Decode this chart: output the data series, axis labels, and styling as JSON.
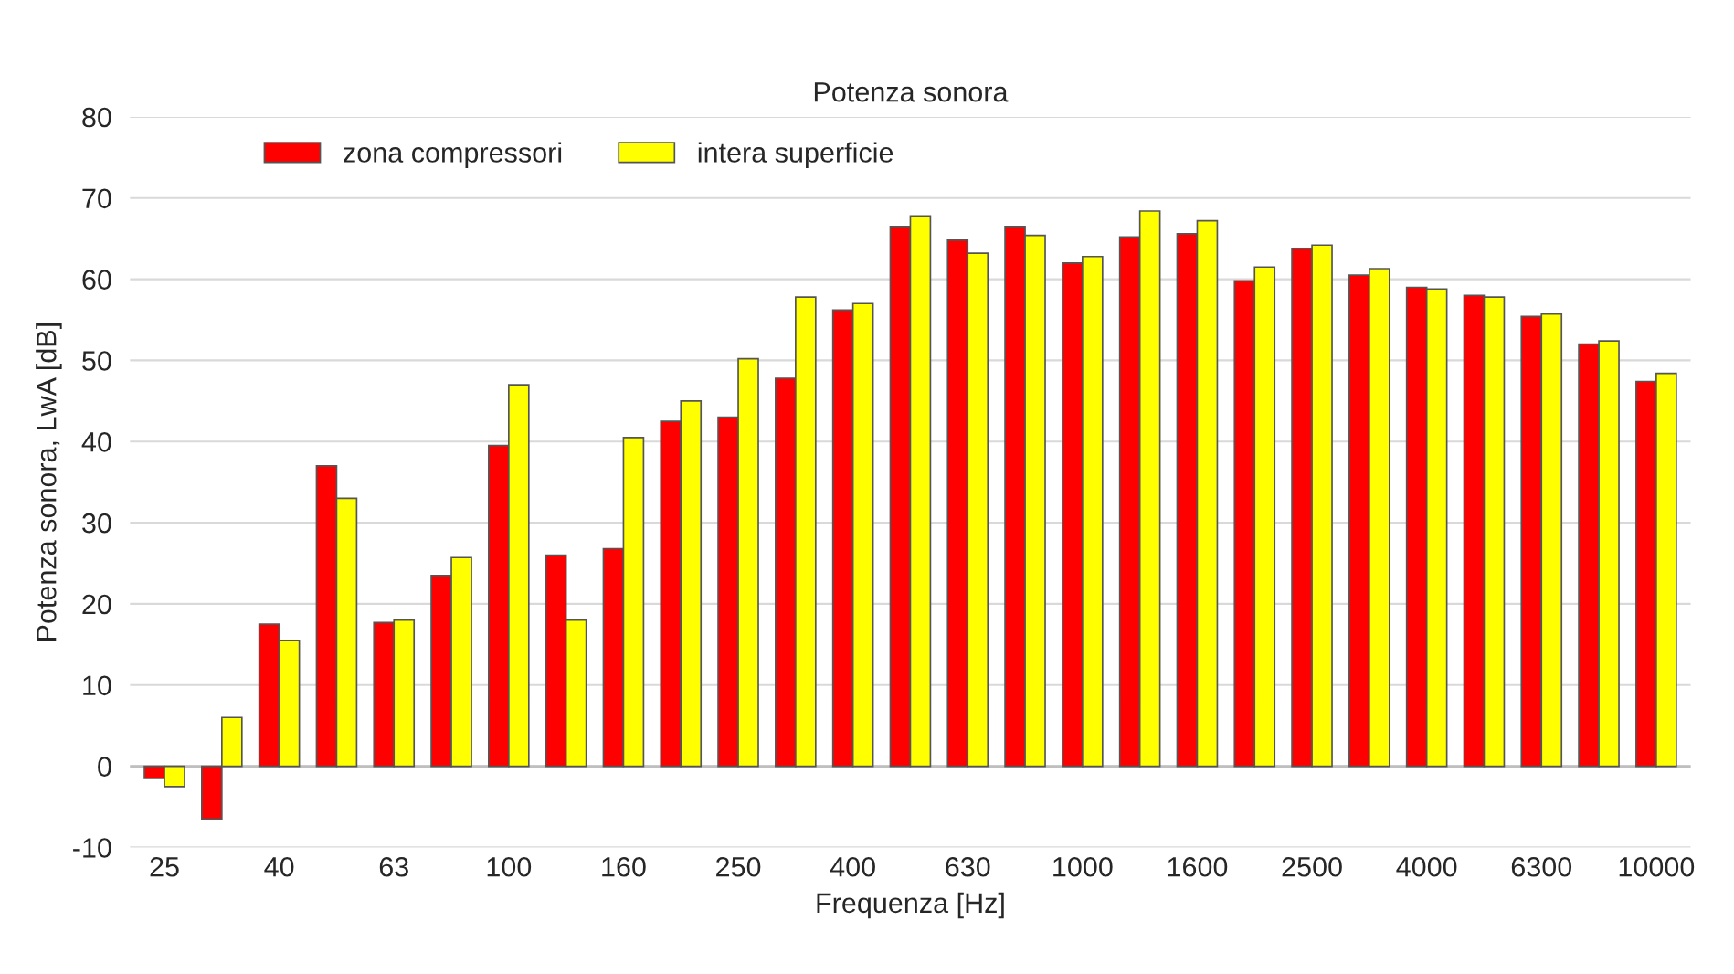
{
  "chart_data": {
    "type": "bar",
    "title": "Potenza sonora",
    "xlabel": "Frequenza [Hz]",
    "ylabel": "Potenza sonora, LwA [dB]",
    "categories": [
      "25",
      null,
      "40",
      null,
      "63",
      null,
      "100",
      null,
      "160",
      null,
      "250",
      null,
      "400",
      null,
      "630",
      null,
      "1000",
      null,
      "1600",
      null,
      "2500",
      null,
      "4000",
      null,
      "6300",
      null,
      "10000"
    ],
    "series": [
      {
        "name": "zona compressori",
        "color": "#ff0000",
        "values": [
          -1.5,
          -6.5,
          17.5,
          37,
          17.7,
          23.5,
          39.5,
          26,
          26.8,
          42.5,
          43,
          47.8,
          56.2,
          66.5,
          64.8,
          66.5,
          62,
          65.2,
          65.6,
          59.8,
          63.8,
          60.5,
          59,
          58,
          55.4,
          52,
          47.4
        ]
      },
      {
        "name": "intera superficie",
        "color": "#ffff00",
        "values": [
          -2.5,
          6,
          15.5,
          33,
          18,
          25.7,
          47,
          18,
          40.5,
          45,
          50.2,
          57.8,
          57,
          67.8,
          63.2,
          65.4,
          62.8,
          68.4,
          67.2,
          61.5,
          64.2,
          61.3,
          58.8,
          57.8,
          55.7,
          52.4,
          48.4
        ]
      }
    ],
    "ylim": [
      -10,
      80
    ],
    "yticks": [
      -10,
      0,
      10,
      20,
      30,
      40,
      50,
      60,
      70,
      80
    ],
    "grid": "y",
    "legend": "top left"
  }
}
